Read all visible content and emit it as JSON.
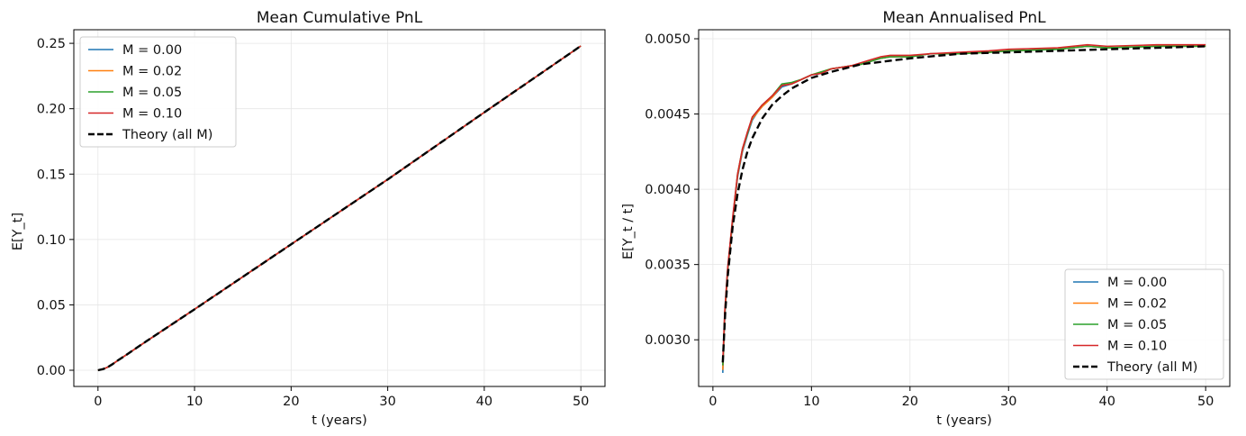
{
  "colors": {
    "M = 0.00": "#1f77b4",
    "M = 0.02": "#ff7f0e",
    "M = 0.05": "#2ca02c",
    "M = 0.10": "#d62728",
    "Theory (all M)": "#000000",
    "grid": "#e6e6e6"
  },
  "chart_data": [
    {
      "type": "line",
      "title": "Mean Cumulative PnL",
      "xlabel": "t (years)",
      "ylabel": "E[Y_t]",
      "xlim": [
        -2.5,
        52.5
      ],
      "ylim": [
        -0.0124,
        0.2604
      ],
      "xticks": [
        0,
        10,
        20,
        30,
        40,
        50
      ],
      "xtick_labels": [
        "0",
        "10",
        "20",
        "30",
        "40",
        "50"
      ],
      "yticks": [
        0.0,
        0.05,
        0.1,
        0.15,
        0.2,
        0.25
      ],
      "ytick_labels": [
        "0.00",
        "0.05",
        "0.10",
        "0.15",
        "0.20",
        "0.25"
      ],
      "grid": true,
      "legend_position": "upper-left",
      "series": [
        {
          "name": "M = 0.00",
          "style": "solid",
          "x": [
            0,
            0.5,
            1,
            1.5,
            2,
            3,
            5,
            10,
            20,
            30,
            40,
            50
          ],
          "y": [
            0.0,
            0.0008,
            0.0023,
            0.0046,
            0.0072,
            0.0121,
            0.0221,
            0.0466,
            0.0963,
            0.1459,
            0.1972,
            0.248
          ]
        },
        {
          "name": "M = 0.02",
          "style": "solid",
          "x": [
            0,
            0.5,
            1,
            1.5,
            2,
            3,
            5,
            10,
            20,
            30,
            40,
            50
          ],
          "y": [
            0.0,
            0.0008,
            0.0023,
            0.0046,
            0.0072,
            0.0121,
            0.0221,
            0.0466,
            0.0963,
            0.1459,
            0.1972,
            0.248
          ]
        },
        {
          "name": "M = 0.05",
          "style": "solid",
          "x": [
            0,
            0.5,
            1,
            1.5,
            2,
            3,
            5,
            10,
            20,
            30,
            40,
            50
          ],
          "y": [
            0.0,
            0.0008,
            0.0023,
            0.0046,
            0.0072,
            0.0121,
            0.0221,
            0.0466,
            0.0963,
            0.1459,
            0.1972,
            0.248
          ]
        },
        {
          "name": "M = 0.10",
          "style": "solid",
          "x": [
            0,
            0.5,
            1,
            1.5,
            2,
            3,
            5,
            10,
            20,
            30,
            40,
            50
          ],
          "y": [
            0.0,
            0.0008,
            0.0023,
            0.0046,
            0.0072,
            0.0121,
            0.0221,
            0.0466,
            0.0963,
            0.1459,
            0.1972,
            0.248
          ]
        },
        {
          "name": "Theory (all M)",
          "style": "dashed",
          "x": [
            0,
            0.5,
            1,
            1.5,
            2,
            3,
            5,
            10,
            20,
            30,
            40,
            50
          ],
          "y": [
            0.0,
            0.0008,
            0.0023,
            0.0046,
            0.0072,
            0.0121,
            0.0221,
            0.0466,
            0.0963,
            0.1459,
            0.1972,
            0.248
          ]
        }
      ]
    },
    {
      "type": "line",
      "title": "Mean Annualised PnL",
      "xlabel": "t (years)",
      "ylabel": "E[Y_t / t]",
      "xlim": [
        -1.45,
        52.45
      ],
      "ylim": [
        0.00269,
        0.00506
      ],
      "xticks": [
        0,
        10,
        20,
        30,
        40,
        50
      ],
      "xtick_labels": [
        "0",
        "10",
        "20",
        "30",
        "40",
        "50"
      ],
      "yticks": [
        0.003,
        0.0035,
        0.004,
        0.0045,
        0.005
      ],
      "ytick_labels": [
        "0.0030",
        "0.0035",
        "0.0040",
        "0.0045",
        "0.0050"
      ],
      "grid": true,
      "legend_position": "lower-right",
      "series": [
        {
          "name": "M = 0.00",
          "style": "solid",
          "x": [
            1,
            1.2,
            1.5,
            2,
            2.5,
            3,
            3.5,
            4,
            4.5,
            5,
            6,
            7,
            8,
            9,
            10,
            11,
            12,
            13,
            14,
            15,
            16,
            17,
            18,
            20,
            22,
            25,
            28,
            30,
            35,
            38,
            40,
            45,
            50
          ],
          "y": [
            0.00278,
            0.00315,
            0.00345,
            0.00378,
            0.00408,
            0.00425,
            0.00436,
            0.00446,
            0.00451,
            0.00455,
            0.00461,
            0.00468,
            0.0047,
            0.00473,
            0.00476,
            0.00477,
            0.0048,
            0.00481,
            0.00482,
            0.00483,
            0.00485,
            0.00487,
            0.00488,
            0.00488,
            0.0049,
            0.0049,
            0.00491,
            0.00492,
            0.00493,
            0.00495,
            0.00494,
            0.00495,
            0.00495
          ]
        },
        {
          "name": "M = 0.02",
          "style": "solid",
          "x": [
            1,
            1.2,
            1.5,
            2,
            2.5,
            3,
            3.5,
            4,
            4.5,
            5,
            6,
            7,
            8,
            9,
            10,
            11,
            12,
            13,
            14,
            15,
            16,
            17,
            18,
            20,
            22,
            25,
            28,
            30,
            35,
            38,
            40,
            45,
            50
          ],
          "y": [
            0.0028,
            0.00316,
            0.00346,
            0.00379,
            0.00409,
            0.00426,
            0.00437,
            0.00447,
            0.00451,
            0.00455,
            0.00461,
            0.00469,
            0.0047,
            0.00473,
            0.00476,
            0.00478,
            0.0048,
            0.00481,
            0.00482,
            0.00483,
            0.00485,
            0.00487,
            0.00488,
            0.00488,
            0.0049,
            0.0049,
            0.00491,
            0.00492,
            0.00493,
            0.00495,
            0.00494,
            0.00495,
            0.00495
          ]
        },
        {
          "name": "M = 0.05",
          "style": "solid",
          "x": [
            1,
            1.2,
            1.5,
            2,
            2.5,
            3,
            3.5,
            4,
            4.5,
            5,
            6,
            7,
            8,
            9,
            10,
            11,
            12,
            13,
            14,
            15,
            16,
            17,
            18,
            20,
            22,
            25,
            28,
            30,
            35,
            38,
            40,
            45,
            50
          ],
          "y": [
            0.00283,
            0.00318,
            0.00347,
            0.0038,
            0.0041,
            0.00427,
            0.00437,
            0.00448,
            0.00452,
            0.00456,
            0.00462,
            0.0047,
            0.00471,
            0.00473,
            0.00476,
            0.00478,
            0.0048,
            0.00481,
            0.00482,
            0.00483,
            0.00485,
            0.00487,
            0.00488,
            0.00488,
            0.0049,
            0.0049,
            0.00491,
            0.00492,
            0.00493,
            0.00495,
            0.00494,
            0.00495,
            0.00495
          ]
        },
        {
          "name": "M = 0.10",
          "style": "solid",
          "x": [
            1,
            1.2,
            1.5,
            2,
            2.5,
            3,
            3.5,
            4,
            4.5,
            5,
            6,
            7,
            8,
            9,
            10,
            11,
            12,
            13,
            14,
            15,
            16,
            17,
            18,
            20,
            22,
            25,
            28,
            30,
            35,
            38,
            40,
            45,
            50
          ],
          "y": [
            0.00285,
            0.00319,
            0.00348,
            0.00381,
            0.0041,
            0.00427,
            0.00438,
            0.00448,
            0.00452,
            0.00456,
            0.00462,
            0.00469,
            0.0047,
            0.00473,
            0.00476,
            0.00477,
            0.0048,
            0.00481,
            0.00482,
            0.00484,
            0.00486,
            0.00488,
            0.00489,
            0.00489,
            0.0049,
            0.00491,
            0.00492,
            0.00493,
            0.00494,
            0.00496,
            0.00495,
            0.00496,
            0.00496
          ]
        },
        {
          "name": "Theory (all M)",
          "style": "dashed",
          "x": [
            1,
            1.25,
            1.5,
            2,
            2.5,
            3,
            3.5,
            4,
            5,
            6,
            7,
            8,
            10,
            12,
            15,
            20,
            25,
            30,
            35,
            40,
            45,
            50
          ],
          "y": [
            0.00285,
            0.00318,
            0.00342,
            0.00375,
            0.00397,
            0.00413,
            0.00425,
            0.00434,
            0.00447,
            0.00456,
            0.00462,
            0.00467,
            0.00474,
            0.00478,
            0.00483,
            0.00487,
            0.0049,
            0.00491,
            0.00492,
            0.00493,
            0.00494,
            0.00495
          ]
        }
      ]
    }
  ]
}
